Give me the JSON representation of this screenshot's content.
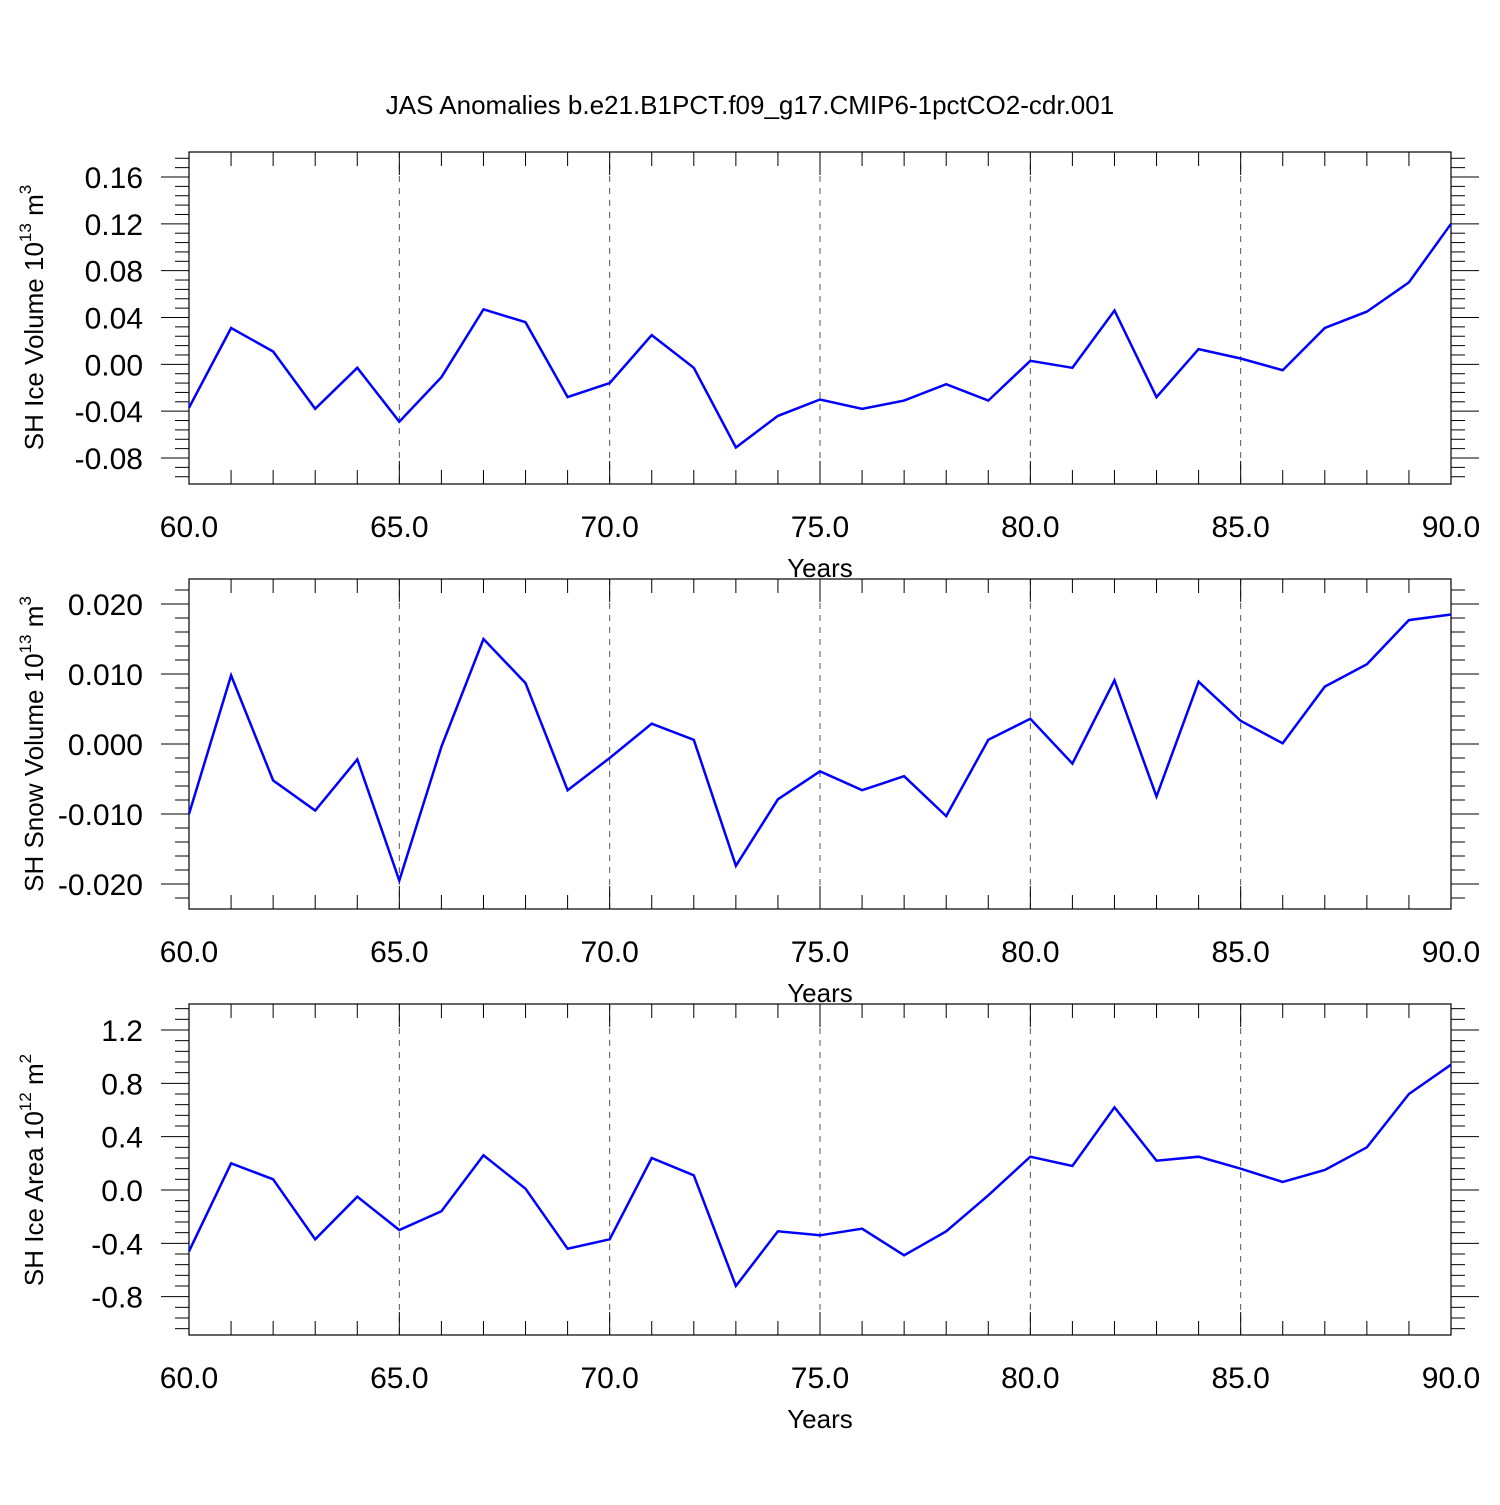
{
  "title": "JAS Anomalies b.e21.B1PCT.f09_g17.CMIP6-1pctCO2-cdr.001",
  "colors": {
    "line": "#0000ff",
    "axis": "#000000",
    "grid": "#555555"
  },
  "chart_data": [
    {
      "type": "line",
      "xlabel": "Years",
      "ylabel": "SH Ice Volume 10",
      "ylabel_exp": "13",
      "ylabel_unit": " m",
      "ylabel_unit_exp": "3",
      "xlim": [
        60,
        90
      ],
      "ylim": [
        -0.08,
        0.16
      ],
      "yticks": [
        0.16,
        0.12,
        0.08,
        0.04,
        0.0,
        -0.04,
        -0.08
      ],
      "ytick_labels": [
        "0.16",
        "0.12",
        "0.08",
        "0.04",
        "0.00",
        "-0.04",
        "-0.08"
      ],
      "xticks": [
        60,
        65,
        70,
        75,
        80,
        85,
        90
      ],
      "xtick_labels": [
        "60.0",
        "65.0",
        "70.0",
        "75.0",
        "80.0",
        "85.0",
        "90.0"
      ],
      "grid": "x-dashed",
      "x": [
        60,
        61,
        62,
        63,
        64,
        65,
        66,
        67,
        68,
        69,
        70,
        71,
        72,
        73,
        74,
        75,
        76,
        77,
        78,
        79,
        80,
        81,
        82,
        83,
        84,
        85,
        86,
        87,
        88,
        89,
        90
      ],
      "y": [
        -0.037,
        0.031,
        0.011,
        -0.038,
        -0.003,
        -0.049,
        -0.011,
        0.047,
        0.036,
        -0.028,
        -0.016,
        0.025,
        -0.003,
        -0.071,
        -0.044,
        -0.03,
        -0.038,
        -0.031,
        -0.017,
        -0.031,
        0.003,
        -0.003,
        0.046,
        -0.028,
        0.013,
        0.005,
        -0.005,
        0.031,
        0.045,
        0.07,
        0.12
      ]
    },
    {
      "type": "line",
      "xlabel": "Years",
      "ylabel": "SH Snow Volume 10",
      "ylabel_exp": "13",
      "ylabel_unit": " m",
      "ylabel_unit_exp": "3",
      "xlim": [
        60,
        90
      ],
      "ylim": [
        -0.02,
        0.02
      ],
      "yticks": [
        0.02,
        0.01,
        0.0,
        -0.01,
        -0.02
      ],
      "ytick_labels": [
        "0.020",
        "0.010",
        "0.000",
        "-0.010",
        "-0.020"
      ],
      "xticks": [
        60,
        65,
        70,
        75,
        80,
        85,
        90
      ],
      "xtick_labels": [
        "60.0",
        "65.0",
        "70.0",
        "75.0",
        "80.0",
        "85.0",
        "90.0"
      ],
      "grid": "x-dashed",
      "x": [
        60,
        61,
        62,
        63,
        64,
        65,
        66,
        67,
        68,
        69,
        70,
        71,
        72,
        73,
        74,
        75,
        76,
        77,
        78,
        79,
        80,
        81,
        82,
        83,
        84,
        85,
        86,
        87,
        88,
        89,
        90
      ],
      "y": [
        -0.01,
        0.0098,
        -0.0052,
        -0.0095,
        -0.0022,
        -0.0195,
        -0.0004,
        0.015,
        0.0087,
        -0.0066,
        -0.002,
        0.0029,
        0.0006,
        -0.0174,
        -0.0079,
        -0.0039,
        -0.0066,
        -0.0046,
        -0.0103,
        0.0006,
        0.0036,
        -0.0028,
        0.0091,
        -0.0075,
        0.0089,
        0.0033,
        0.0001,
        0.0082,
        0.0114,
        0.0177,
        0.0185
      ]
    },
    {
      "type": "line",
      "xlabel": "Years",
      "ylabel": "SH Ice Area 10",
      "ylabel_exp": "12",
      "ylabel_unit": " m",
      "ylabel_unit_exp": "2",
      "xlim": [
        60,
        90
      ],
      "ylim": [
        -0.9,
        1.2
      ],
      "yticks": [
        1.2,
        0.8,
        0.4,
        0.0,
        -0.4,
        -0.8
      ],
      "ytick_labels": [
        "1.2",
        "0.8",
        "0.4",
        "0.0",
        "-0.4",
        "-0.8"
      ],
      "xticks": [
        60,
        65,
        70,
        75,
        80,
        85,
        90
      ],
      "xtick_labels": [
        "60.0",
        "65.0",
        "70.0",
        "75.0",
        "80.0",
        "85.0",
        "90.0"
      ],
      "grid": "x-dashed",
      "x": [
        60,
        61,
        62,
        63,
        64,
        65,
        66,
        67,
        68,
        69,
        70,
        71,
        72,
        73,
        74,
        75,
        76,
        77,
        78,
        79,
        80,
        81,
        82,
        83,
        84,
        85,
        86,
        87,
        88,
        89,
        90
      ],
      "y": [
        -0.46,
        0.2,
        0.08,
        -0.37,
        -0.05,
        -0.3,
        -0.16,
        0.26,
        0.01,
        -0.44,
        -0.37,
        0.24,
        0.11,
        -0.72,
        -0.31,
        -0.34,
        -0.29,
        -0.49,
        -0.31,
        -0.04,
        0.25,
        0.18,
        0.62,
        0.22,
        0.25,
        0.16,
        0.06,
        0.15,
        0.32,
        0.72,
        0.94
      ]
    }
  ]
}
